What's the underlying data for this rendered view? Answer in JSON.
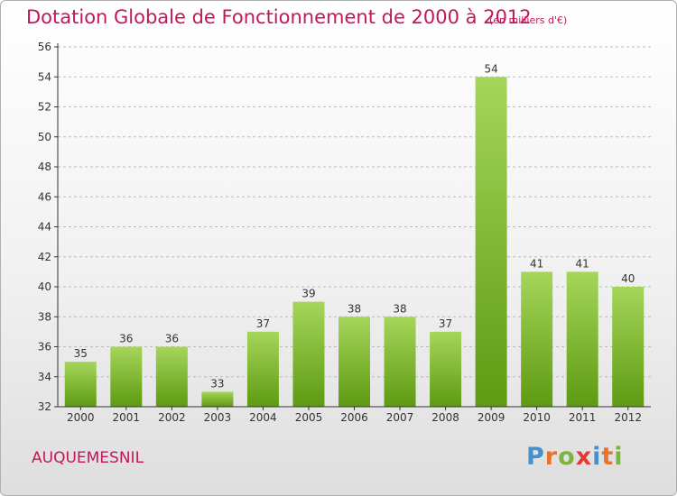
{
  "colors": {
    "title": "#c2185b",
    "bar_light": "#a5d65a",
    "bar_dark": "#5e9a12",
    "axis": "#333333",
    "grid": "#bbbbbb"
  },
  "commune": "AUQUEMESNIL",
  "brand": {
    "text": "Proxiti",
    "letters": [
      "P",
      "r",
      "o",
      "x",
      "i",
      "t",
      "i"
    ],
    "letter_colors": [
      "#4a90c8",
      "#e8732a",
      "#7cb342",
      "#e53935",
      "#4a90c8",
      "#e8732a",
      "#7cb342"
    ]
  },
  "chart_data": {
    "type": "bar",
    "title": "Dotation Globale de Fonctionnement de 2000 à 2012",
    "subtitle": "(en milliers d'€)",
    "xlabel": "",
    "ylabel": "",
    "categories": [
      "2000",
      "2001",
      "2002",
      "2003",
      "2004",
      "2005",
      "2006",
      "2007",
      "2008",
      "2009",
      "2010",
      "2011",
      "2012"
    ],
    "values": [
      35,
      36,
      36,
      33,
      37,
      39,
      38,
      38,
      37,
      54,
      41,
      41,
      40
    ],
    "ylim": [
      32,
      56
    ],
    "yticks": [
      32,
      34,
      36,
      38,
      40,
      42,
      44,
      46,
      48,
      50,
      52,
      54,
      56
    ],
    "grid": "horizontal dashed",
    "legend": "none"
  }
}
